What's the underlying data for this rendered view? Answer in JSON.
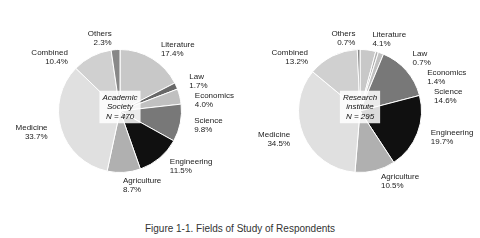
{
  "title": "Figure 1-1. Fields of Study of Respondents",
  "chart_data": [
    {
      "type": "pie",
      "title": "Academic\nSociety\nN = 470",
      "categories": [
        "Literature",
        "Law",
        "Economics",
        "Science",
        "Engineering",
        "Agriculture",
        "Medicine",
        "Combined",
        "Others"
      ],
      "values": [
        17.4,
        1.7,
        4.0,
        9.8,
        11.5,
        8.7,
        33.7,
        10.4,
        2.3
      ],
      "value_labels": [
        "17.4%",
        "1.7%",
        "4.0%",
        "9.8%",
        "11.5%",
        "8.7%",
        "33.7%",
        "10.4%",
        "2.3%"
      ],
      "colors": [
        "#c8c8c8",
        "#686868",
        "#c0c0c0",
        "#787878",
        "#101010",
        "#b0b0b0",
        "#e0e0e0",
        "#d0d0d0",
        "#888888"
      ],
      "data_labels": true
    },
    {
      "type": "pie",
      "title": "Research\ninstitute\nN = 295",
      "categories": [
        "Literature",
        "Law",
        "Economics",
        "Science",
        "Engineering",
        "Agriculture",
        "Medicine",
        "Combined",
        "Others"
      ],
      "values": [
        4.1,
        0.7,
        1.4,
        14.6,
        19.7,
        10.5,
        34.5,
        13.2,
        0.7
      ],
      "value_labels": [
        "4.1%",
        "0.7%",
        "1.4%",
        "14.6%",
        "19.7%",
        "10.5%",
        "34.5%",
        "13.2%",
        "0.7%"
      ],
      "colors": [
        "#c8c8c8",
        "#b0b0b0",
        "#c0c0c0",
        "#787878",
        "#101010",
        "#b0b0b0",
        "#e0e0e0",
        "#d0d0d0",
        "#888888"
      ],
      "data_labels": true
    }
  ]
}
